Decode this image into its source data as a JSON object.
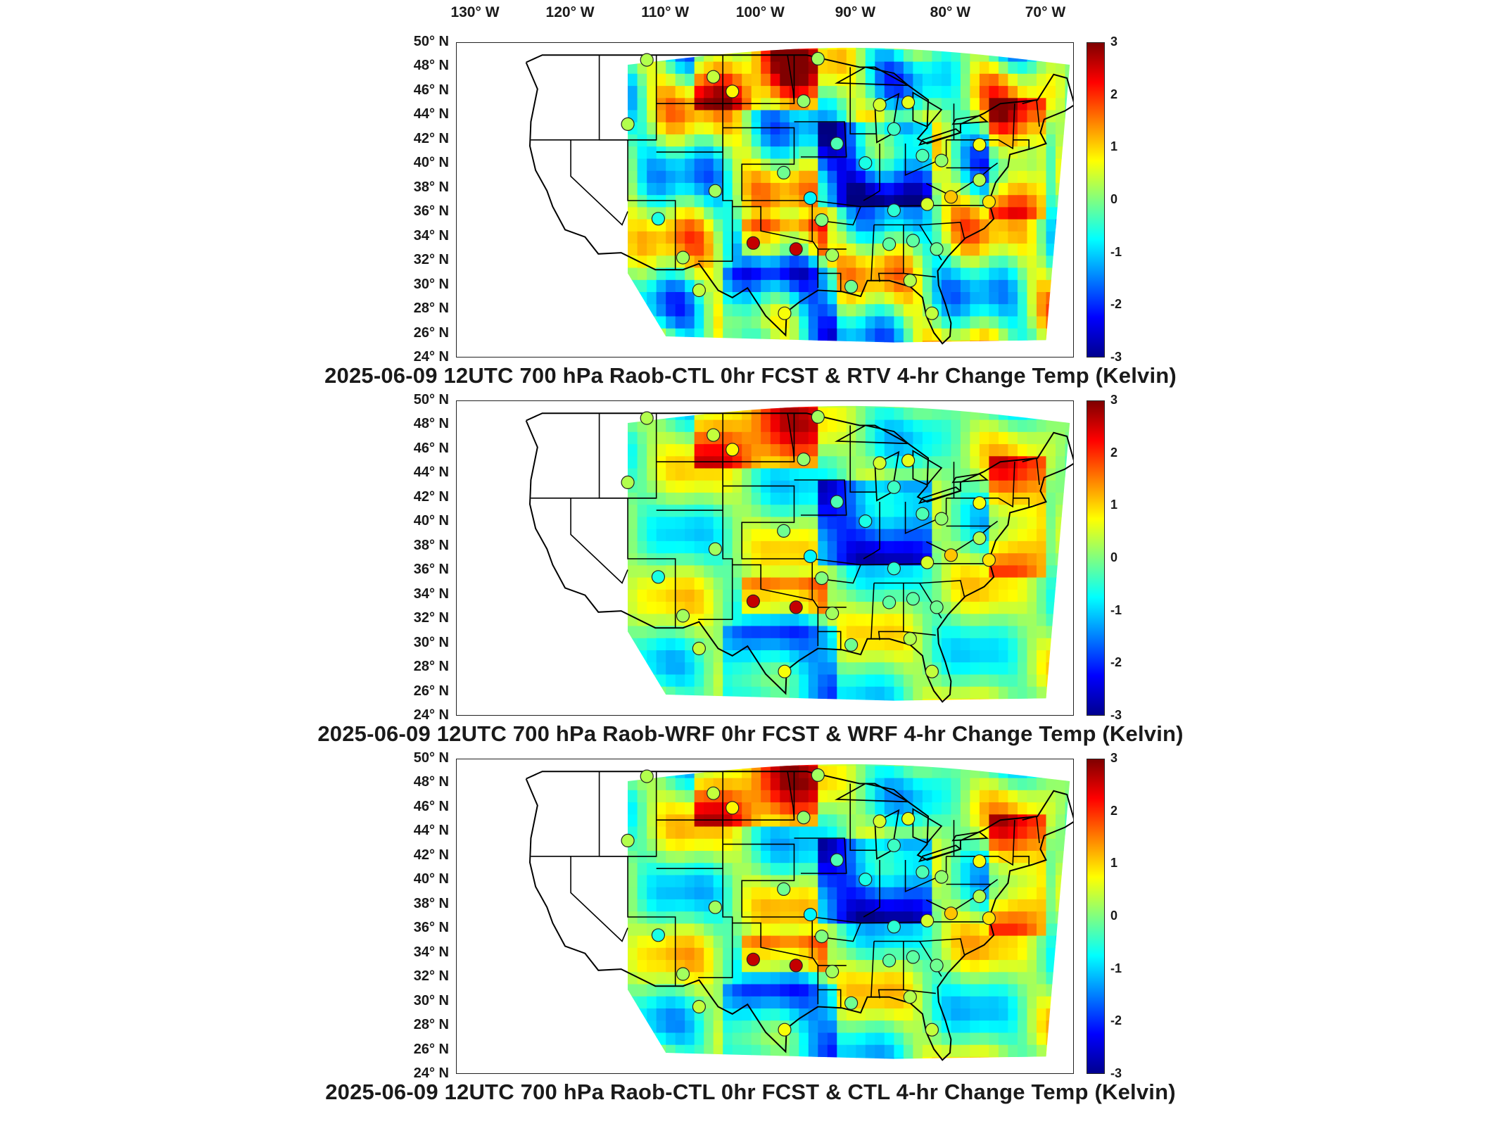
{
  "longitude_ticks": [
    "130° W",
    "120° W",
    "110° W",
    "100° W",
    "90° W",
    "80° W",
    "70° W"
  ],
  "latitude_ticks": [
    "50° N",
    "48° N",
    "46° N",
    "44° N",
    "42° N",
    "40° N",
    "38° N",
    "36° N",
    "34° N",
    "32° N",
    "30° N",
    "28° N",
    "26° N",
    "24° N"
  ],
  "colorbar": {
    "min": -3,
    "max": 3,
    "ticks": [
      "3",
      "2",
      "1",
      "0",
      "-1",
      "-2",
      "-3"
    ],
    "colormap": "jet",
    "colors": [
      "#7f0000",
      "#ff0000",
      "#ff8000",
      "#ffff00",
      "#80ff80",
      "#00ffff",
      "#0080ff",
      "#0000ff",
      "#00008f"
    ]
  },
  "panels": [
    {
      "title": "2025-06-09 12UTC 700 hPa Raob-CTL 0hr FCST & RTV 4-hr Change Temp (Kelvin)",
      "field_pattern": "rtv"
    },
    {
      "title": "2025-06-09 12UTC 700 hPa Raob-WRF 0hr FCST & WRF 4-hr Change Temp (Kelvin)",
      "field_pattern": "wrf"
    },
    {
      "title": "2025-06-09 12UTC 700 hPa Raob-CTL 0hr FCST & CTL 4-hr Change Temp (Kelvin)",
      "field_pattern": "ctl"
    }
  ],
  "map_extent": {
    "lon_min": -132,
    "lon_max": -67,
    "lat_min": 24,
    "lat_max": 50
  },
  "raob_stations": [
    {
      "lon": -112,
      "lat": 48.6,
      "value": 0.3
    },
    {
      "lon": -105,
      "lat": 47.2,
      "value": 0.4
    },
    {
      "lon": -103,
      "lat": 46.0,
      "value": 0.8
    },
    {
      "lon": -94,
      "lat": 48.7,
      "value": 0.2
    },
    {
      "lon": -95.5,
      "lat": 45.2,
      "value": 0.1
    },
    {
      "lon": -87.5,
      "lat": 44.9,
      "value": 0.5
    },
    {
      "lon": -84.5,
      "lat": 45.1,
      "value": 0.6
    },
    {
      "lon": -114,
      "lat": 43.3,
      "value": 0.3
    },
    {
      "lon": -92,
      "lat": 41.7,
      "value": -0.3
    },
    {
      "lon": -86,
      "lat": 42.9,
      "value": -0.4
    },
    {
      "lon": -89,
      "lat": 40.1,
      "value": -0.6
    },
    {
      "lon": -83,
      "lat": 40.7,
      "value": -0.3
    },
    {
      "lon": -81,
      "lat": 40.3,
      "value": 0.1
    },
    {
      "lon": -77,
      "lat": 41.6,
      "value": 0.7
    },
    {
      "lon": -97.6,
      "lat": 39.3,
      "value": -0.1
    },
    {
      "lon": -104.8,
      "lat": 37.8,
      "value": 0.2
    },
    {
      "lon": -94.8,
      "lat": 37.2,
      "value": -0.8
    },
    {
      "lon": -86,
      "lat": 36.2,
      "value": -0.5
    },
    {
      "lon": -82.5,
      "lat": 36.7,
      "value": 0.5
    },
    {
      "lon": -80,
      "lat": 37.3,
      "value": 1.1
    },
    {
      "lon": -77,
      "lat": 38.7,
      "value": 0.3
    },
    {
      "lon": -76,
      "lat": 36.9,
      "value": 0.9
    },
    {
      "lon": -110.8,
      "lat": 35.5,
      "value": -0.6
    },
    {
      "lon": -93.6,
      "lat": 35.4,
      "value": 0.0
    },
    {
      "lon": -100.8,
      "lat": 33.5,
      "value": 2.6
    },
    {
      "lon": -96.3,
      "lat": 33.0,
      "value": 2.6
    },
    {
      "lon": -108.2,
      "lat": 32.3,
      "value": 0.2
    },
    {
      "lon": -92.5,
      "lat": 32.5,
      "value": 0.2
    },
    {
      "lon": -86.5,
      "lat": 33.4,
      "value": -0.2
    },
    {
      "lon": -84,
      "lat": 33.7,
      "value": -0.2
    },
    {
      "lon": -81.5,
      "lat": 33.0,
      "value": -0.1
    },
    {
      "lon": -106.5,
      "lat": 29.6,
      "value": 0.4
    },
    {
      "lon": -97.5,
      "lat": 27.7,
      "value": 0.7
    },
    {
      "lon": -90.5,
      "lat": 29.9,
      "value": -0.1
    },
    {
      "lon": -84.3,
      "lat": 30.4,
      "value": 0.3
    },
    {
      "lon": -82,
      "lat": 27.7,
      "value": 0.4
    }
  ]
}
